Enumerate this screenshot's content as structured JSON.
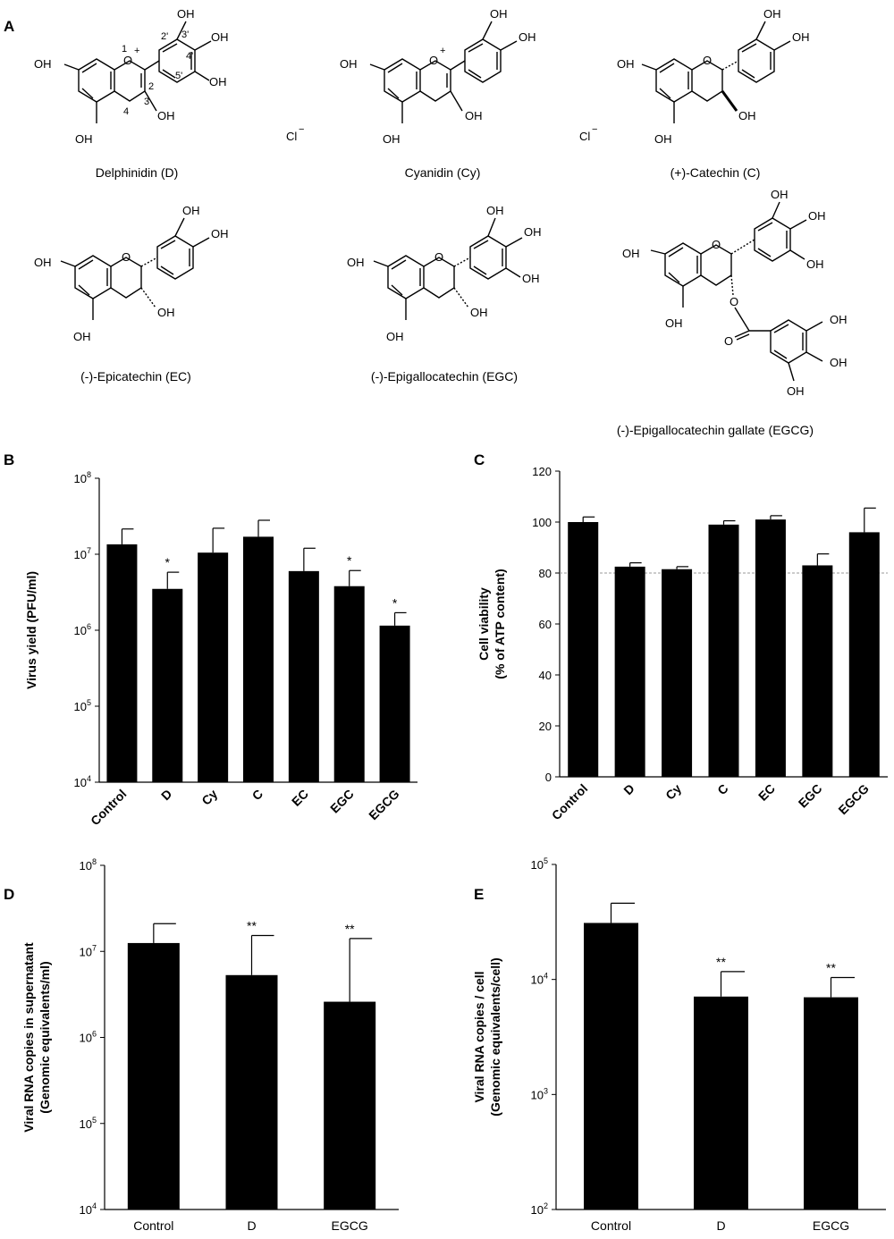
{
  "panel_a": {
    "letter": "A",
    "counter_ion": "Cl",
    "counter_ion_charge": "−",
    "atoms": {
      "oh": "OH",
      "o": "O",
      "o_plus": "O",
      "plus": "+"
    },
    "numbering": [
      "1",
      "2",
      "3",
      "4",
      "2'",
      "3'",
      "4'",
      "5'"
    ],
    "compounds": [
      {
        "name": "Delphinidin (D)"
      },
      {
        "name": "Cyanidin (Cy)"
      },
      {
        "name": "(+)-Catechin (C)"
      },
      {
        "name": "(-)-Epicatechin (EC)"
      },
      {
        "name": "(-)-Epigallocatechin (EGC)"
      },
      {
        "name": "(-)-Epigallocatechin gallate (EGCG)"
      }
    ]
  },
  "chart_data": [
    {
      "id": "B",
      "letter": "B",
      "type": "bar",
      "ylabel": "Virus yield (PFU/ml)",
      "yscale": "log",
      "ylim": [
        10000,
        100000000
      ],
      "yticks": [
        {
          "v": 10000,
          "b": "10",
          "e": "4"
        },
        {
          "v": 100000,
          "b": "10",
          "e": "5"
        },
        {
          "v": 1000000,
          "b": "10",
          "e": "6"
        },
        {
          "v": 10000000,
          "b": "10",
          "e": "7"
        },
        {
          "v": 100000000,
          "b": "10",
          "e": "8"
        }
      ],
      "categories": [
        "Control",
        "D",
        "Cy",
        "C",
        "EC",
        "EGC",
        "EGCG"
      ],
      "values": [
        13500000,
        3500000,
        10500000,
        17000000,
        6000000,
        3800000,
        1150000
      ],
      "errors": [
        8000000,
        2300000,
        11500000,
        11000000,
        6000000,
        2300000,
        550000
      ],
      "significance": [
        "",
        "*",
        "",
        "",
        "",
        "*",
        "*"
      ],
      "xlabel_rotated": true
    },
    {
      "id": "C",
      "letter": "C",
      "type": "bar",
      "ylabel": "Cell viability",
      "ylabel2": "(% of ATP content)",
      "yscale": "linear",
      "ylim": [
        0,
        120
      ],
      "yticks": [
        {
          "v": 0,
          "t": "0"
        },
        {
          "v": 20,
          "t": "20"
        },
        {
          "v": 40,
          "t": "40"
        },
        {
          "v": 60,
          "t": "60"
        },
        {
          "v": 80,
          "t": "80"
        },
        {
          "v": 100,
          "t": "100"
        },
        {
          "v": 120,
          "t": "120"
        }
      ],
      "categories": [
        "Control",
        "D",
        "Cy",
        "C",
        "EC",
        "EGC",
        "EGCG"
      ],
      "values": [
        100,
        82.5,
        81.5,
        99,
        101,
        83,
        96
      ],
      "errors": [
        2,
        1.5,
        1,
        1.5,
        1.5,
        4.5,
        9.5
      ],
      "reference_line": 80,
      "significance": [
        "",
        "",
        "",
        "",
        "",
        "",
        ""
      ],
      "xlabel_rotated": true
    },
    {
      "id": "D",
      "letter": "D",
      "type": "bar",
      "ylabel": "Viral RNA copies in supernatant",
      "ylabel2": "(Genomic equivalents/ml)",
      "yscale": "log",
      "ylim": [
        10000,
        100000000
      ],
      "yticks": [
        {
          "v": 10000,
          "b": "10",
          "e": "4"
        },
        {
          "v": 100000,
          "b": "10",
          "e": "5"
        },
        {
          "v": 1000000,
          "b": "10",
          "e": "6"
        },
        {
          "v": 10000000,
          "b": "10",
          "e": "7"
        },
        {
          "v": 100000000,
          "b": "10",
          "e": "8"
        }
      ],
      "categories": [
        "Control",
        "D",
        "EGCG"
      ],
      "values": [
        12500000,
        5300000,
        2600000
      ],
      "errors": [
        8500000,
        10000000,
        11500000
      ],
      "significance": [
        "",
        "**",
        "**"
      ],
      "xlabel_rotated": false
    },
    {
      "id": "E",
      "letter": "E",
      "type": "bar",
      "ylabel": "Viral RNA copies / cell",
      "ylabel2": "(Genomic equivalents/cell)",
      "yscale": "log",
      "ylim": [
        100,
        100000
      ],
      "yticks": [
        {
          "v": 100,
          "b": "10",
          "e": "2"
        },
        {
          "v": 1000,
          "b": "10",
          "e": "3"
        },
        {
          "v": 10000,
          "b": "10",
          "e": "4"
        },
        {
          "v": 100000,
          "b": "10",
          "e": "5"
        }
      ],
      "categories": [
        "Control",
        "D",
        "EGCG"
      ],
      "values": [
        31000,
        7100,
        7000
      ],
      "errors": [
        15000,
        4600,
        3400
      ],
      "significance": [
        "",
        "**",
        "**"
      ],
      "xlabel_rotated": false
    }
  ]
}
